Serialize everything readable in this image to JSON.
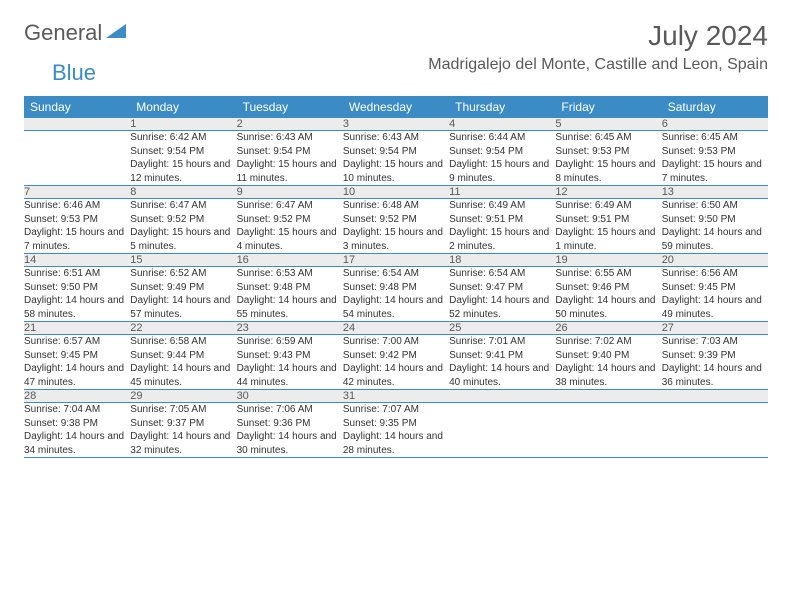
{
  "brand": {
    "part1": "General",
    "part2": "Blue"
  },
  "title": "July 2024",
  "location": "Madrigalejo del Monte, Castille and Leon, Spain",
  "colors": {
    "header_bg": "#3b8bc4",
    "header_fg": "#ffffff",
    "daynum_bg": "#ececec",
    "text": "#333333",
    "title_color": "#5a5a5a",
    "border": "#3b8bc4"
  },
  "day_headers": [
    "Sunday",
    "Monday",
    "Tuesday",
    "Wednesday",
    "Thursday",
    "Friday",
    "Saturday"
  ],
  "weeks": [
    {
      "nums": [
        "",
        "1",
        "2",
        "3",
        "4",
        "5",
        "6"
      ],
      "details": [
        "",
        "Sunrise: 6:42 AM\nSunset: 9:54 PM\nDaylight: 15 hours and 12 minutes.",
        "Sunrise: 6:43 AM\nSunset: 9:54 PM\nDaylight: 15 hours and 11 minutes.",
        "Sunrise: 6:43 AM\nSunset: 9:54 PM\nDaylight: 15 hours and 10 minutes.",
        "Sunrise: 6:44 AM\nSunset: 9:54 PM\nDaylight: 15 hours and 9 minutes.",
        "Sunrise: 6:45 AM\nSunset: 9:53 PM\nDaylight: 15 hours and 8 minutes.",
        "Sunrise: 6:45 AM\nSunset: 9:53 PM\nDaylight: 15 hours and 7 minutes."
      ]
    },
    {
      "nums": [
        "7",
        "8",
        "9",
        "10",
        "11",
        "12",
        "13"
      ],
      "details": [
        "Sunrise: 6:46 AM\nSunset: 9:53 PM\nDaylight: 15 hours and 7 minutes.",
        "Sunrise: 6:47 AM\nSunset: 9:52 PM\nDaylight: 15 hours and 5 minutes.",
        "Sunrise: 6:47 AM\nSunset: 9:52 PM\nDaylight: 15 hours and 4 minutes.",
        "Sunrise: 6:48 AM\nSunset: 9:52 PM\nDaylight: 15 hours and 3 minutes.",
        "Sunrise: 6:49 AM\nSunset: 9:51 PM\nDaylight: 15 hours and 2 minutes.",
        "Sunrise: 6:49 AM\nSunset: 9:51 PM\nDaylight: 15 hours and 1 minute.",
        "Sunrise: 6:50 AM\nSunset: 9:50 PM\nDaylight: 14 hours and 59 minutes."
      ]
    },
    {
      "nums": [
        "14",
        "15",
        "16",
        "17",
        "18",
        "19",
        "20"
      ],
      "details": [
        "Sunrise: 6:51 AM\nSunset: 9:50 PM\nDaylight: 14 hours and 58 minutes.",
        "Sunrise: 6:52 AM\nSunset: 9:49 PM\nDaylight: 14 hours and 57 minutes.",
        "Sunrise: 6:53 AM\nSunset: 9:48 PM\nDaylight: 14 hours and 55 minutes.",
        "Sunrise: 6:54 AM\nSunset: 9:48 PM\nDaylight: 14 hours and 54 minutes.",
        "Sunrise: 6:54 AM\nSunset: 9:47 PM\nDaylight: 14 hours and 52 minutes.",
        "Sunrise: 6:55 AM\nSunset: 9:46 PM\nDaylight: 14 hours and 50 minutes.",
        "Sunrise: 6:56 AM\nSunset: 9:45 PM\nDaylight: 14 hours and 49 minutes."
      ]
    },
    {
      "nums": [
        "21",
        "22",
        "23",
        "24",
        "25",
        "26",
        "27"
      ],
      "details": [
        "Sunrise: 6:57 AM\nSunset: 9:45 PM\nDaylight: 14 hours and 47 minutes.",
        "Sunrise: 6:58 AM\nSunset: 9:44 PM\nDaylight: 14 hours and 45 minutes.",
        "Sunrise: 6:59 AM\nSunset: 9:43 PM\nDaylight: 14 hours and 44 minutes.",
        "Sunrise: 7:00 AM\nSunset: 9:42 PM\nDaylight: 14 hours and 42 minutes.",
        "Sunrise: 7:01 AM\nSunset: 9:41 PM\nDaylight: 14 hours and 40 minutes.",
        "Sunrise: 7:02 AM\nSunset: 9:40 PM\nDaylight: 14 hours and 38 minutes.",
        "Sunrise: 7:03 AM\nSunset: 9:39 PM\nDaylight: 14 hours and 36 minutes."
      ]
    },
    {
      "nums": [
        "28",
        "29",
        "30",
        "31",
        "",
        "",
        ""
      ],
      "details": [
        "Sunrise: 7:04 AM\nSunset: 9:38 PM\nDaylight: 14 hours and 34 minutes.",
        "Sunrise: 7:05 AM\nSunset: 9:37 PM\nDaylight: 14 hours and 32 minutes.",
        "Sunrise: 7:06 AM\nSunset: 9:36 PM\nDaylight: 14 hours and 30 minutes.",
        "Sunrise: 7:07 AM\nSunset: 9:35 PM\nDaylight: 14 hours and 28 minutes.",
        "",
        "",
        ""
      ]
    }
  ]
}
